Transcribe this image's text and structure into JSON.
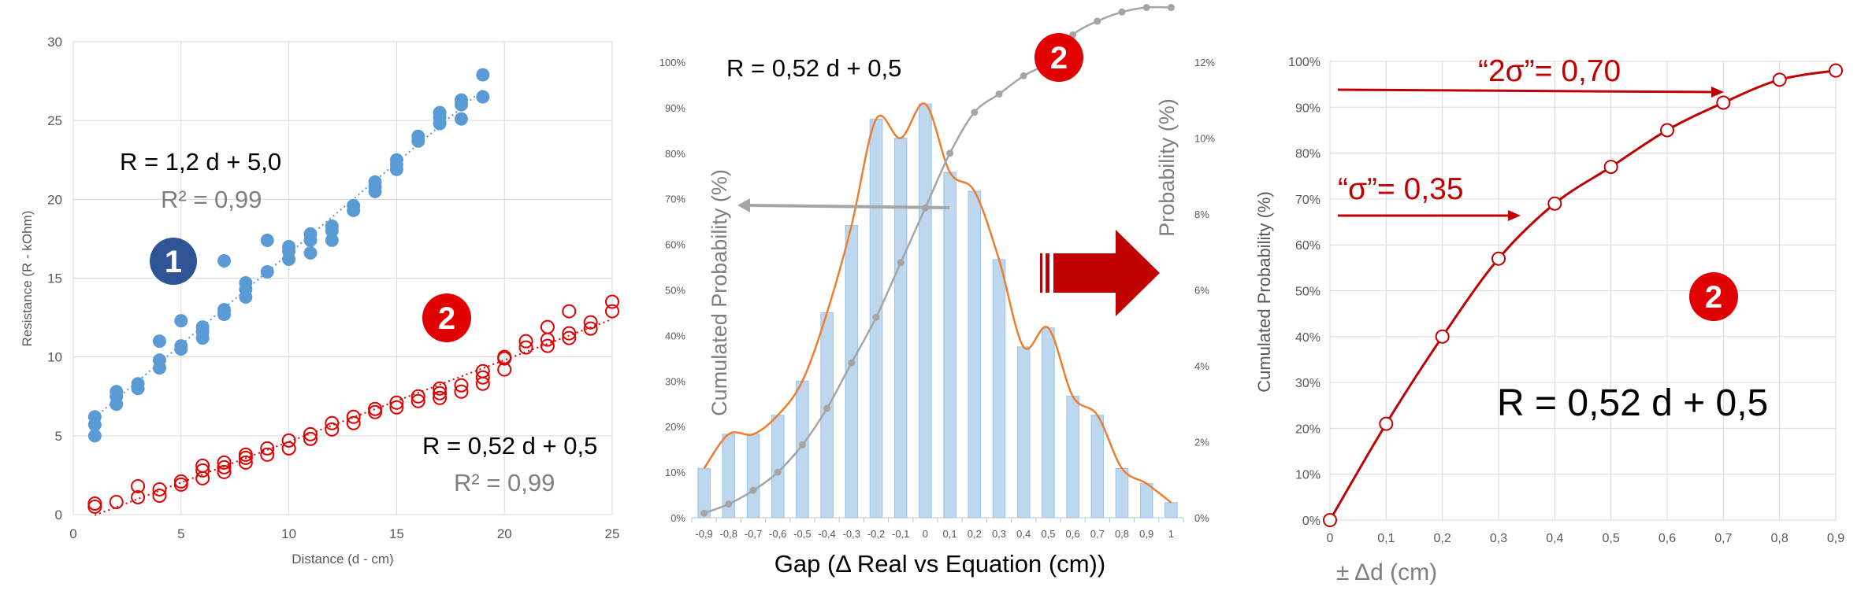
{
  "colors": {
    "blue": "#5b9bd5",
    "red": "#e00000",
    "darkred": "#c00000",
    "orange": "#ed7d31",
    "gray": "#a5a5a5",
    "barfill": "#bdd7ee",
    "barstroke": "#9dc3e6",
    "grid": "#d9d9d9",
    "navy": "#2f5597"
  },
  "chart_data": [
    {
      "type": "scatter",
      "xlabel": "Distance (d - cm)",
      "ylabel": "Resistance (R - kOhm)",
      "xlim": [
        0,
        25
      ],
      "ylim": [
        0,
        30
      ],
      "x_ticks": [
        "0",
        "5",
        "10",
        "15",
        "20",
        "25"
      ],
      "y_ticks": [
        "0",
        "5",
        "10",
        "15",
        "20",
        "25",
        "30"
      ],
      "grid": "vertical and horizontal",
      "series": [
        {
          "marker": "filled blue circle",
          "trendline": "dotted linear",
          "points": [
            [
              1,
              5.0
            ],
            [
              1,
              5.7
            ],
            [
              1,
              6.2
            ],
            [
              2,
              7.0
            ],
            [
              2,
              7.5
            ],
            [
              2,
              7.8
            ],
            [
              3,
              8.0
            ],
            [
              3,
              8.3
            ],
            [
              4,
              9.3
            ],
            [
              4,
              9.8
            ],
            [
              4,
              11.0
            ],
            [
              5,
              10.5
            ],
            [
              5,
              10.7
            ],
            [
              5,
              12.3
            ],
            [
              6,
              11.2
            ],
            [
              6,
              11.6
            ],
            [
              6,
              11.9
            ],
            [
              7,
              12.7
            ],
            [
              7,
              13.0
            ],
            [
              7,
              16.1
            ],
            [
              8,
              13.8
            ],
            [
              8,
              14.3
            ],
            [
              8,
              14.7
            ],
            [
              9,
              15.4
            ],
            [
              9,
              17.4
            ],
            [
              10,
              16.2
            ],
            [
              10,
              16.7
            ],
            [
              10,
              17.0
            ],
            [
              11,
              16.6
            ],
            [
              11,
              17.4
            ],
            [
              11,
              17.8
            ],
            [
              12,
              17.4
            ],
            [
              12,
              18.0
            ],
            [
              12,
              18.3
            ],
            [
              13,
              19.3
            ],
            [
              13,
              19.6
            ],
            [
              14,
              20.5
            ],
            [
              14,
              20.8
            ],
            [
              14,
              21.1
            ],
            [
              15,
              21.9
            ],
            [
              15,
              22.2
            ],
            [
              15,
              22.5
            ],
            [
              16,
              23.7
            ],
            [
              16,
              24.0
            ],
            [
              17,
              24.8
            ],
            [
              17,
              25.2
            ],
            [
              17,
              25.5
            ],
            [
              18,
              25.1
            ],
            [
              18,
              26.0
            ],
            [
              18,
              26.3
            ],
            [
              19,
              26.5
            ],
            [
              19,
              27.9
            ]
          ]
        },
        {
          "marker": "hollow red circle",
          "trendline": "dotted linear",
          "points": [
            [
              1,
              0.5
            ],
            [
              1,
              0.7
            ],
            [
              2,
              0.8
            ],
            [
              3,
              1.1
            ],
            [
              3,
              1.8
            ],
            [
              4,
              1.2
            ],
            [
              4,
              1.6
            ],
            [
              5,
              1.9
            ],
            [
              5,
              2.1
            ],
            [
              6,
              2.3
            ],
            [
              6,
              2.8
            ],
            [
              6,
              3.1
            ],
            [
              7,
              2.7
            ],
            [
              7,
              3.0
            ],
            [
              7,
              3.3
            ],
            [
              8,
              3.3
            ],
            [
              8,
              3.6
            ],
            [
              8,
              3.8
            ],
            [
              9,
              3.8
            ],
            [
              9,
              4.2
            ],
            [
              10,
              4.2
            ],
            [
              10,
              4.7
            ],
            [
              11,
              4.8
            ],
            [
              11,
              5.1
            ],
            [
              12,
              5.4
            ],
            [
              12,
              5.8
            ],
            [
              13,
              5.8
            ],
            [
              13,
              6.2
            ],
            [
              14,
              6.5
            ],
            [
              14,
              6.7
            ],
            [
              15,
              6.8
            ],
            [
              15,
              7.1
            ],
            [
              16,
              7.2
            ],
            [
              16,
              7.5
            ],
            [
              17,
              7.4
            ],
            [
              17,
              7.7
            ],
            [
              17,
              8.0
            ],
            [
              18,
              7.8
            ],
            [
              18,
              8.2
            ],
            [
              19,
              8.3
            ],
            [
              19,
              8.7
            ],
            [
              19,
              9.1
            ],
            [
              20,
              9.2
            ],
            [
              20,
              9.9
            ],
            [
              20,
              10.0
            ],
            [
              21,
              10.6
            ],
            [
              21,
              11.0
            ],
            [
              22,
              10.7
            ],
            [
              22,
              11.1
            ],
            [
              22,
              11.9
            ],
            [
              23,
              11.2
            ],
            [
              23,
              11.5
            ],
            [
              23,
              12.9
            ],
            [
              24,
              11.8
            ],
            [
              24,
              12.2
            ],
            [
              25,
              12.9
            ],
            [
              25,
              13.5
            ]
          ]
        }
      ],
      "annotations": {
        "eq1": "R = 1,2 d + 5,0",
        "r2_1": "R² = 0,99",
        "badge1": "1",
        "badge2": "2",
        "eq2": "R = 0,52 d + 0,5",
        "r2_2": "R² = 0,99"
      }
    },
    {
      "type": "bar",
      "overlays": [
        "orange smoothed line over bars",
        "gray cumulative line with points"
      ],
      "xlabel": "Gap (Δ Real vs Equation (cm))",
      "ylabel_left": "Cumulated Probability (%)",
      "ylabel_right": "Probability (%)",
      "categories": [
        "-0,9",
        "-0,8",
        "-0,7",
        "-0,6",
        "-0,5",
        "-0,4",
        "-0,3",
        "-0,2",
        "-0,1",
        "0",
        "0,1",
        "0,2",
        "0,3",
        "0,4",
        "0,5",
        "0,6",
        "0,7",
        "0,8",
        "0,9",
        "1"
      ],
      "probability": [
        1.3,
        2.2,
        2.2,
        2.7,
        3.6,
        5.4,
        7.7,
        10.5,
        10.0,
        10.9,
        9.1,
        8.6,
        6.8,
        4.5,
        5.0,
        3.2,
        2.7,
        1.3,
        0.9,
        0.4
      ],
      "cumulated": [
        1,
        3,
        6,
        10,
        16,
        24,
        34,
        44,
        56,
        68,
        80,
        89,
        93,
        97,
        100,
        106,
        109,
        111,
        112,
        112
      ],
      "left_axis": [
        "0%",
        "10%",
        "20%",
        "30%",
        "40%",
        "50%",
        "60%",
        "70%",
        "80%",
        "90%",
        "100%"
      ],
      "right_axis": [
        "0%",
        "2%",
        "4%",
        "6%",
        "8%",
        "10%",
        "12%"
      ],
      "ylim_left": [
        0,
        100
      ],
      "ylim_right": [
        0,
        12
      ],
      "annotations": {
        "equation": "R = 0,52 d + 0,5",
        "badge": "2"
      }
    },
    {
      "type": "line",
      "xlabel": "± Δd (cm)",
      "ylabel": "Cumulated Probability (%)",
      "x": [
        0,
        0.1,
        0.2,
        0.3,
        0.4,
        0.5,
        0.6,
        0.7,
        0.8,
        0.9
      ],
      "x_ticks": [
        "0",
        "0,1",
        "0,2",
        "0,3",
        "0,4",
        "0,5",
        "0,6",
        "0,7",
        "0,8",
        "0,9"
      ],
      "y": [
        0,
        21,
        40,
        57,
        69,
        77,
        85,
        91,
        96,
        98
      ],
      "y_ticks": [
        "0%",
        "10%",
        "20%",
        "30%",
        "40%",
        "50%",
        "60%",
        "70%",
        "80%",
        "90%",
        "100%"
      ],
      "ylim": [
        0,
        100
      ],
      "annotations": {
        "two_sigma": "“2σ”= 0,70",
        "sigma": "“σ”= 0,35",
        "badge": "2",
        "equation": "R = 0,52 d + 0,5"
      }
    }
  ]
}
